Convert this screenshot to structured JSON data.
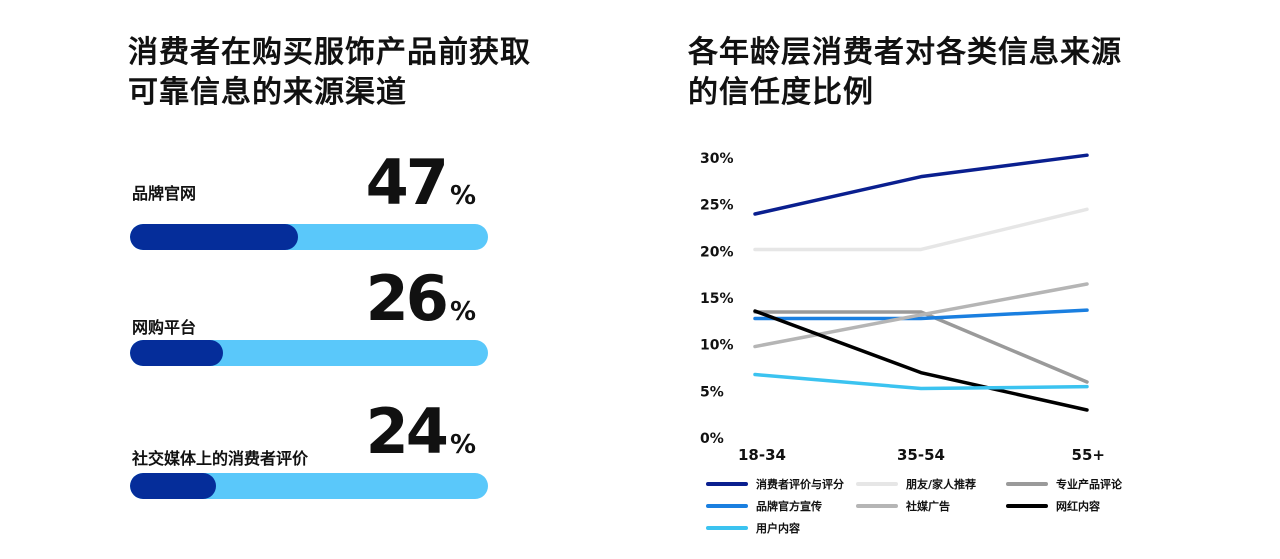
{
  "left": {
    "title": "消费者在购买服饰产品前获取可靠信息的来源渠道",
    "metrics": [
      {
        "label": "品牌官网",
        "value": 47,
        "unit": "%"
      },
      {
        "label": "网购平台",
        "value": 26,
        "unit": "%"
      },
      {
        "label": "社交媒体上的消费者评价",
        "value": 24,
        "unit": "%"
      }
    ],
    "colors": {
      "fill": "#052d9a",
      "track": "#5ac8fa"
    }
  },
  "right": {
    "title": "各年龄层消费者对各类信息来源的信任度比例"
  },
  "chart_data": {
    "type": "line",
    "title": "各年龄层消费者对各类信息来源的信任度比例",
    "xlabel": "",
    "ylabel": "",
    "categories": [
      "18-34",
      "35-54",
      "55+"
    ],
    "yticks": [
      "0%",
      "5%",
      "10%",
      "15%",
      "20%",
      "25%",
      "30%"
    ],
    "ylim": [
      0,
      30
    ],
    "grid": false,
    "legend_position": "bottom",
    "series": [
      {
        "name": "消费者评价与评分",
        "values": [
          24,
          28,
          30.3
        ],
        "color": "#0a1f8f"
      },
      {
        "name": "朋友/家人推荐",
        "values": [
          20.2,
          20.2,
          24.5
        ],
        "color": "#e6e6e6"
      },
      {
        "name": "专业产品评论",
        "values": [
          13.5,
          13.5,
          6
        ],
        "color": "#9a9a9a"
      },
      {
        "name": "品牌官方宣传",
        "values": [
          12.8,
          12.8,
          13.7
        ],
        "color": "#1a7fe0"
      },
      {
        "name": "社媒广告",
        "values": [
          9.8,
          13.2,
          16.5
        ],
        "color": "#b5b5b5"
      },
      {
        "name": "网红内容",
        "values": [
          13.6,
          7,
          3
        ],
        "color": "#000000"
      },
      {
        "name": "用户内容",
        "values": [
          6.8,
          5.3,
          5.5
        ],
        "color": "#3bc3f0"
      }
    ]
  }
}
